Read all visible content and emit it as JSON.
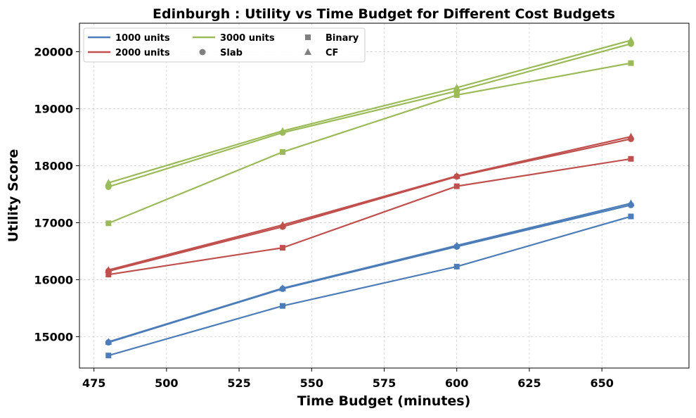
{
  "chart_data": {
    "type": "line",
    "title": "Edinburgh : Utility vs Time Budget for Different Cost Budgets",
    "xlabel": "Time Budget (minutes)",
    "ylabel": "Utility Score",
    "x": [
      480,
      540,
      600,
      660
    ],
    "xlim": [
      470,
      680
    ],
    "ylim": [
      14450,
      20500
    ],
    "x_ticks": [
      475,
      500,
      525,
      550,
      575,
      600,
      625,
      650
    ],
    "y_ticks": [
      15000,
      16000,
      17000,
      18000,
      19000,
      20000
    ],
    "x_tick_labels": [
      "475",
      "500",
      "525",
      "550",
      "575",
      "600",
      "625",
      "650"
    ],
    "y_tick_labels": [
      "15000",
      "16000",
      "17000",
      "18000",
      "19000",
      "20000"
    ],
    "grid": true,
    "legend_position": "top-left",
    "colors": {
      "1000": "#4c7db8",
      "2000": "#c0504d",
      "3000": "#9bbb59",
      "marker_legend": "#808080"
    },
    "series": [
      {
        "budget": "1000",
        "marker": "square",
        "values": [
          14670,
          15540,
          16230,
          17110
        ]
      },
      {
        "budget": "1000",
        "marker": "circle",
        "values": [
          14900,
          15840,
          16580,
          17310
        ]
      },
      {
        "budget": "1000",
        "marker": "triangle",
        "values": [
          14910,
          15850,
          16600,
          17340
        ]
      },
      {
        "budget": "2000",
        "marker": "square",
        "values": [
          16090,
          16560,
          17640,
          18120
        ]
      },
      {
        "budget": "2000",
        "marker": "circle",
        "values": [
          16150,
          16930,
          17810,
          18470
        ]
      },
      {
        "budget": "2000",
        "marker": "triangle",
        "values": [
          16170,
          16960,
          17820,
          18510
        ]
      },
      {
        "budget": "3000",
        "marker": "square",
        "values": [
          16990,
          18240,
          19240,
          19800
        ]
      },
      {
        "budget": "3000",
        "marker": "circle",
        "values": [
          17630,
          18580,
          19310,
          20140
        ]
      },
      {
        "budget": "3000",
        "marker": "triangle",
        "values": [
          17700,
          18610,
          19370,
          20200
        ]
      }
    ],
    "legend": {
      "lines": [
        {
          "budget": "1000",
          "label": "1000 units"
        },
        {
          "budget": "2000",
          "label": "2000 units"
        },
        {
          "budget": "3000",
          "label": "3000 units"
        }
      ],
      "markers": [
        {
          "marker": "circle",
          "label": "Slab"
        },
        {
          "marker": "square",
          "label": "Binary"
        },
        {
          "marker": "triangle",
          "label": "CF"
        }
      ]
    }
  }
}
